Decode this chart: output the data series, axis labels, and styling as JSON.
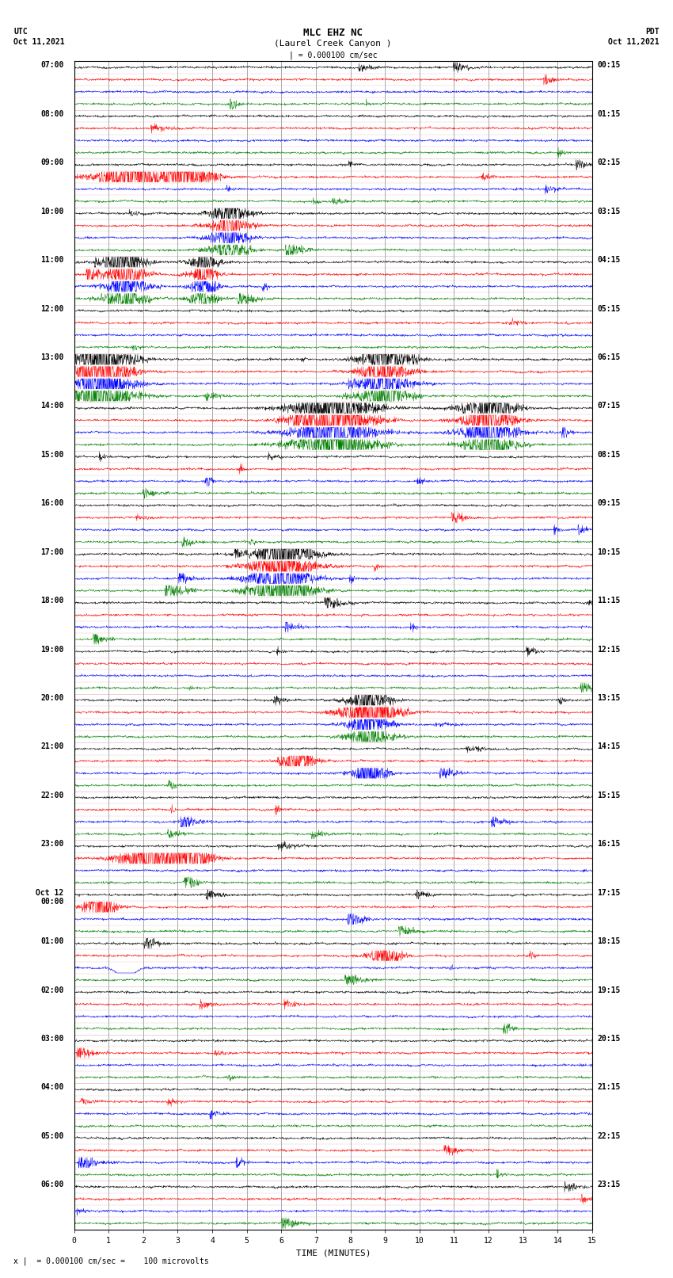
{
  "title_line1": "MLC EHZ NC",
  "title_line2": "(Laurel Creek Canyon )",
  "title_line3": "| = 0.000100 cm/sec",
  "left_label_utc": "UTC",
  "left_date": "Oct 11,2021",
  "right_label_pdt": "PDT",
  "right_date": "Oct 11,2021",
  "xlabel": "TIME (MINUTES)",
  "footnote": "x |  = 0.000100 cm/sec =    100 microvolts",
  "bg_color": "#ffffff",
  "trace_colors": [
    "black",
    "red",
    "blue",
    "green"
  ],
  "utc_hour_labels": [
    "07:00",
    "08:00",
    "09:00",
    "10:00",
    "11:00",
    "12:00",
    "13:00",
    "14:00",
    "15:00",
    "16:00",
    "17:00",
    "18:00",
    "19:00",
    "20:00",
    "21:00",
    "22:00",
    "23:00",
    "Oct 12\n00:00",
    "01:00",
    "02:00",
    "03:00",
    "04:00",
    "05:00",
    "06:00"
  ],
  "pdt_hour_labels": [
    "00:15",
    "01:15",
    "02:15",
    "03:15",
    "04:15",
    "05:15",
    "06:15",
    "07:15",
    "08:15",
    "09:15",
    "10:15",
    "11:15",
    "12:15",
    "13:15",
    "14:15",
    "15:15",
    "16:15",
    "17:15",
    "18:15",
    "19:15",
    "20:15",
    "21:15",
    "22:15",
    "23:15"
  ],
  "n_hours": 24,
  "traces_per_hour": 4,
  "n_cols": 1800,
  "x_min": 0,
  "x_max": 15,
  "v_grid_color": "#888888",
  "h_line_color": "#ccaaaa",
  "font_size_title": 9,
  "font_size_labels": 7,
  "font_size_footnote": 7
}
